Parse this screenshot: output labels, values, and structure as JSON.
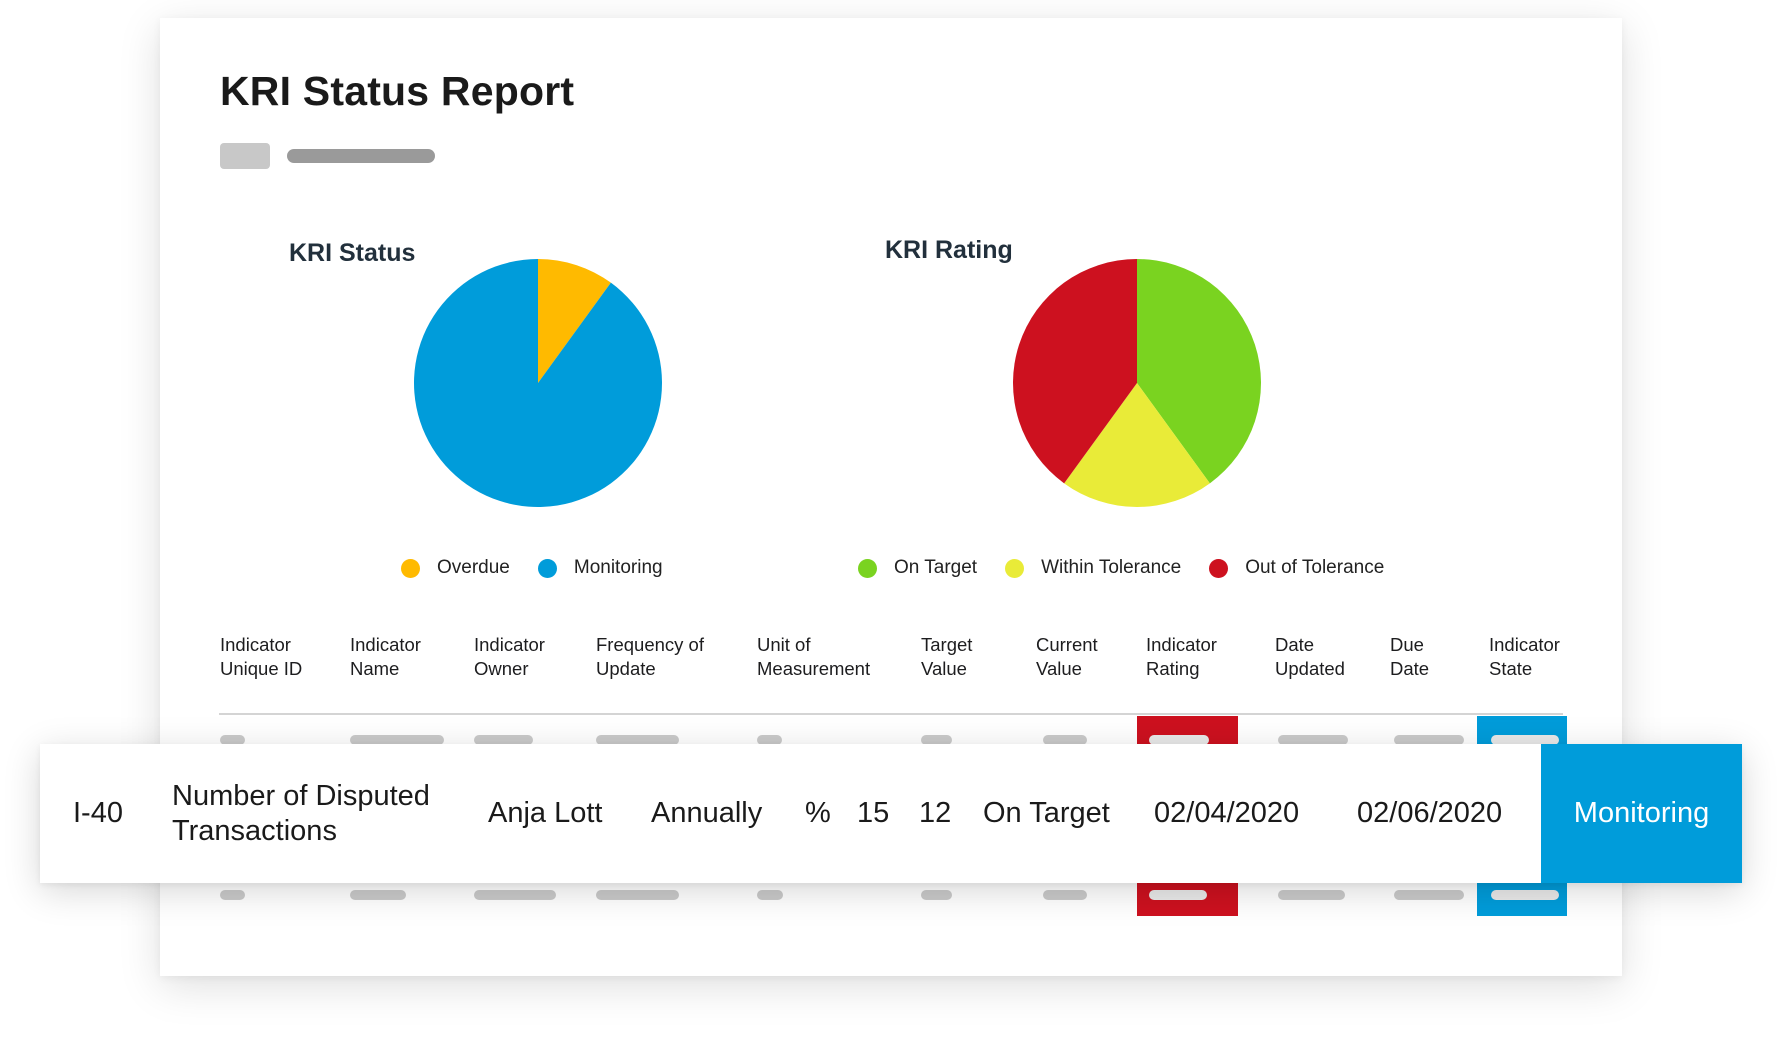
{
  "report": {
    "title": "KRI Status Report"
  },
  "colors": {
    "overdue": "#ffba00",
    "monitoring": "#009cda",
    "on_target": "#7ad320",
    "within_tolerance": "#e9eb38",
    "out_of_tolerance": "#cd111f"
  },
  "chart_data": [
    {
      "type": "pie",
      "title": "KRI Status",
      "slices": [
        {
          "label": "Overdue",
          "value": 10,
          "color": "#ffba00"
        },
        {
          "label": "Monitoring",
          "value": 90,
          "color": "#009cda"
        }
      ],
      "legend": "bottom"
    },
    {
      "type": "pie",
      "title": "KRI Rating",
      "slices": [
        {
          "label": "On Target",
          "value": 40,
          "color": "#7ad320"
        },
        {
          "label": "Within Tolerance",
          "value": 20,
          "color": "#e9eb38"
        },
        {
          "label": "Out of Tolerance",
          "value": 40,
          "color": "#cd111f"
        }
      ],
      "legend": "bottom"
    }
  ],
  "table": {
    "headers": [
      "Indicator\nUnique ID",
      "Indicator\nName",
      "Indicator\nOwner",
      "Frequency of\nUpdate",
      "Unit of\nMeasurement",
      "Target\nValue",
      "Current\nValue",
      "Indicator\nRating",
      "Date\nUpdated",
      "Due\nDate",
      "Indicator\nState"
    ],
    "highlighted_row": {
      "id": "I-40",
      "name": "Number of Disputed Transactions",
      "owner": "Anja Lott",
      "frequency": "Annually",
      "unit": "%",
      "target": "15",
      "current": "12",
      "rating": "On Target",
      "date_updated": "02/04/2020",
      "due_date": "02/06/2020",
      "state": "Monitoring"
    }
  }
}
